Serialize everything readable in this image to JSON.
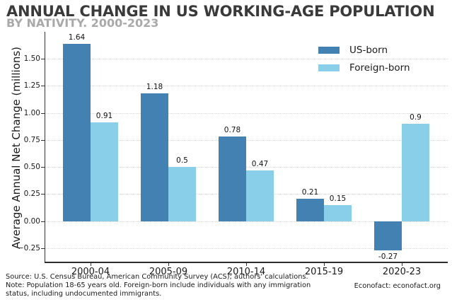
{
  "header": {
    "title": "ANNUAL CHANGE IN US WORKING-AGE POPULATION",
    "subtitle": "BY NATIVITY. 2000-2023"
  },
  "colors": {
    "us_born": "#4281b1",
    "foreign_born": "#89cfe9",
    "title_text": "#3a3a3a",
    "subtitle_text": "#a9a9a9",
    "gridline": "#d7d7d7",
    "axis_spine": "#2b2b2b"
  },
  "chart_data": {
    "type": "bar",
    "title": "ANNUAL CHANGE IN US WORKING-AGE POPULATION",
    "subtitle": "BY NATIVITY. 2000-2023",
    "categories": [
      "2000-04",
      "2005-09",
      "2010-14",
      "2015-19",
      "2020-23"
    ],
    "series": [
      {
        "name": "US-born",
        "slug": "us-born",
        "color": "#4281b1",
        "values": [
          1.64,
          1.18,
          0.78,
          0.21,
          -0.27
        ],
        "labels": [
          "1.64",
          "1.18",
          "0.78",
          "0.21",
          "-0.27"
        ]
      },
      {
        "name": "Foreign-born",
        "slug": "foreign-born",
        "color": "#89cfe9",
        "values": [
          0.91,
          0.5,
          0.47,
          0.15,
          0.9
        ],
        "labels": [
          "0.91",
          "0.5",
          "0.47",
          "0.15",
          "0.9"
        ]
      }
    ],
    "xlabel": "",
    "ylabel": "Average Annual Net Change (millions)",
    "ylim": [
      -0.375,
      1.75
    ],
    "yticks": [
      {
        "value": 1.5,
        "label": "1.50"
      },
      {
        "value": 1.25,
        "label": "1.25"
      },
      {
        "value": 1.0,
        "label": "1.00"
      },
      {
        "value": 0.75,
        "label": "0.75"
      },
      {
        "value": 0.5,
        "label": "0.50"
      },
      {
        "value": 0.25,
        "label": "0.25"
      },
      {
        "value": 0.0,
        "label": "0.00"
      },
      {
        "value": -0.25,
        "label": "−0.25"
      }
    ],
    "grid": "horizontal-dotted",
    "legend_position": "upper-right"
  },
  "footer": {
    "source": "Source: U.S. Census Bureau, American Community Survey (ACS); authors' calculations.",
    "note_line1": "Note: Population 18-65 years old. Foreign-born include individuals with any immigration",
    "note_line2": "status, including undocumented immigrants.",
    "credit": "Econofact: econofact.org"
  }
}
